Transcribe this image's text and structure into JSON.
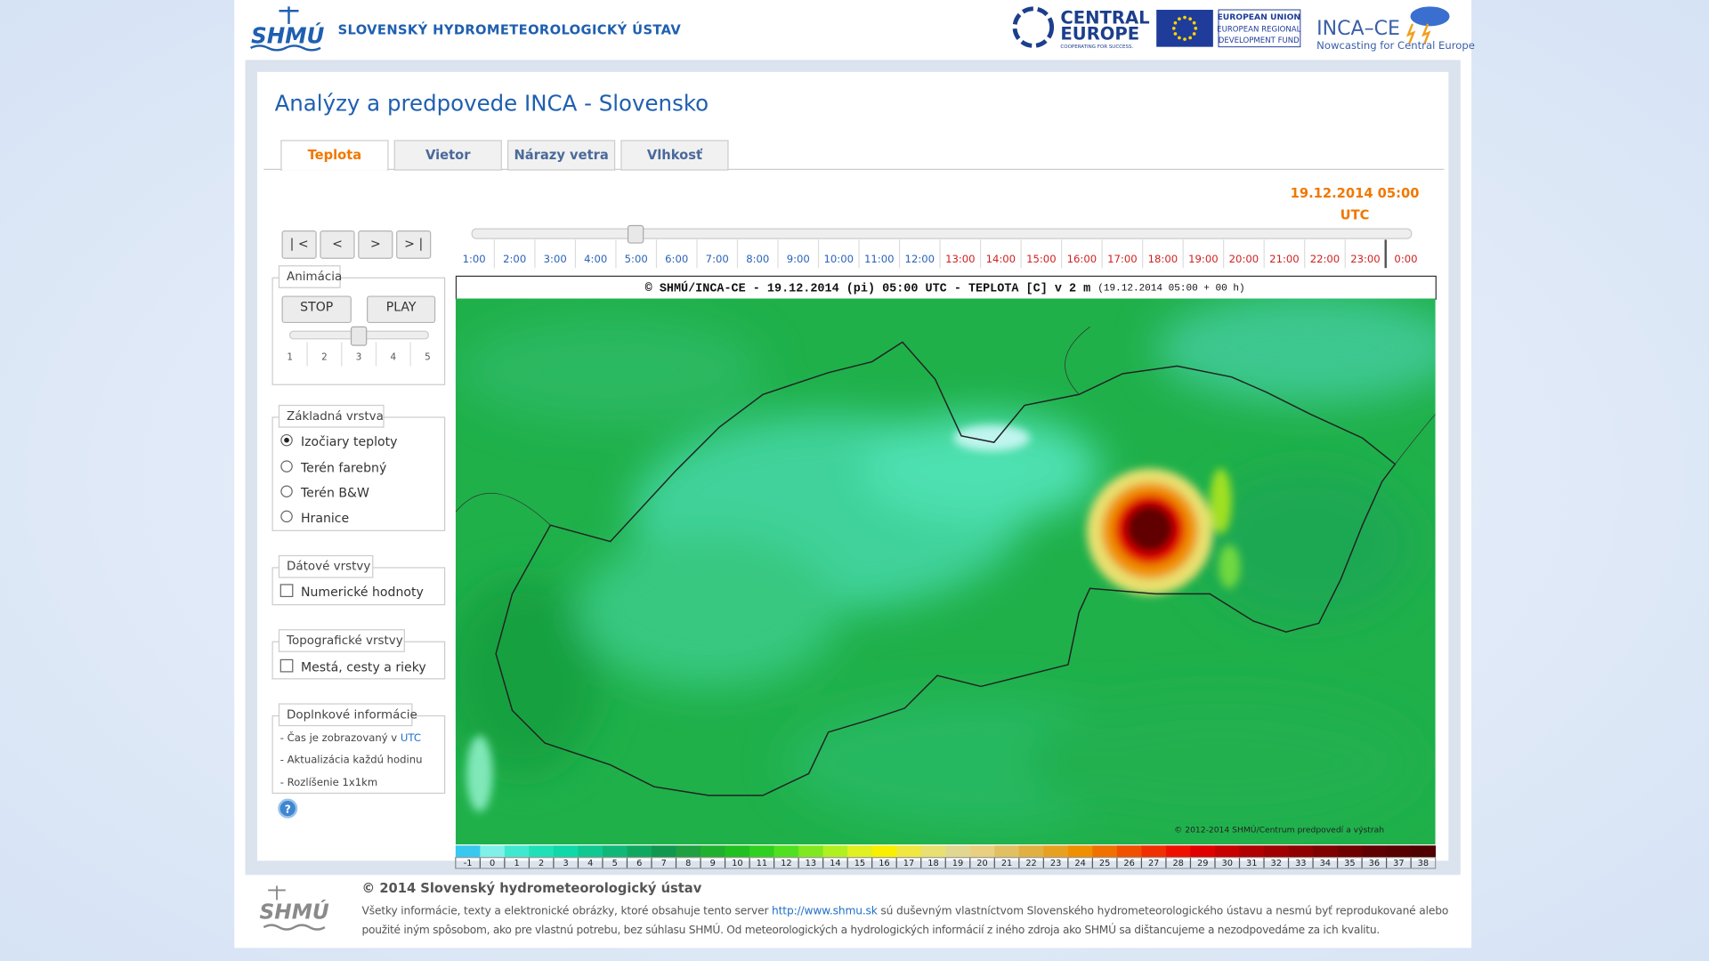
{
  "header": {
    "logo": "SHMÚ",
    "org_name": "SLOVENSKÝ HYDROMETEOROLOGICKÝ ÚSTAV",
    "central_europe": [
      "CENTRAL",
      "EUROPE",
      "COOPERATING FOR SUCCESS."
    ],
    "eu": [
      "EUROPEAN UNION",
      "EUROPEAN REGIONAL",
      "DEVELOPMENT FUND"
    ],
    "inca": {
      "name": "INCA–CE",
      "tagline": "Nowcasting for Central Europe"
    }
  },
  "page": {
    "title": "Analýzy a predpovede INCA - Slovensko",
    "tabs": [
      {
        "label": "Teplota",
        "active": true
      },
      {
        "label": "Vietor",
        "active": false
      },
      {
        "label": "Nárazy vetra",
        "active": false
      },
      {
        "label": "Vlhkosť",
        "active": false
      }
    ]
  },
  "time": {
    "date": "19.12.2014 05:00",
    "zone": "UTC",
    "nav": [
      "| <",
      "<",
      ">",
      "> |"
    ],
    "hours": [
      {
        "label": "1:00",
        "color": "#2a62b8"
      },
      {
        "label": "2:00",
        "color": "#2a62b8"
      },
      {
        "label": "3:00",
        "color": "#2a62b8"
      },
      {
        "label": "4:00",
        "color": "#2a62b8"
      },
      {
        "label": "5:00",
        "color": "#2a62b8",
        "selected": true
      },
      {
        "label": "6:00",
        "color": "#2a62b8"
      },
      {
        "label": "7:00",
        "color": "#2a62b8"
      },
      {
        "label": "8:00",
        "color": "#2a62b8"
      },
      {
        "label": "9:00",
        "color": "#2a62b8"
      },
      {
        "label": "10:00",
        "color": "#2a62b8"
      },
      {
        "label": "11:00",
        "color": "#2a62b8"
      },
      {
        "label": "12:00",
        "color": "#2a62b8"
      },
      {
        "label": "13:00",
        "color": "#d02020"
      },
      {
        "label": "14:00",
        "color": "#d02020"
      },
      {
        "label": "15:00",
        "color": "#d02020"
      },
      {
        "label": "16:00",
        "color": "#d02020"
      },
      {
        "label": "17:00",
        "color": "#d02020"
      },
      {
        "label": "18:00",
        "color": "#d02020"
      },
      {
        "label": "19:00",
        "color": "#d02020"
      },
      {
        "label": "20:00",
        "color": "#d02020"
      },
      {
        "label": "21:00",
        "color": "#d02020"
      },
      {
        "label": "22:00",
        "color": "#d02020"
      },
      {
        "label": "23:00",
        "color": "#d02020"
      },
      {
        "label": "0:00",
        "color": "#d02020"
      }
    ]
  },
  "animation": {
    "legend": "Animácia",
    "stop": "STOP",
    "play": "PLAY",
    "speeds": [
      1,
      2,
      3,
      4,
      5
    ],
    "speed": 3
  },
  "base_layer": {
    "legend": "Základná vrstva",
    "options": [
      {
        "label": "Izočiary teploty",
        "checked": true
      },
      {
        "label": "Terén farebný",
        "checked": false
      },
      {
        "label": "Terén B&W",
        "checked": false
      },
      {
        "label": "Hranice",
        "checked": false
      }
    ]
  },
  "data_layers": {
    "legend": "Dátové vrstvy",
    "options": [
      {
        "label": "Numerické hodnoty",
        "checked": false
      }
    ]
  },
  "topo_layers": {
    "legend": "Topografické vrstvy",
    "options": [
      {
        "label": "Mestá, cesty a rieky",
        "checked": false
      }
    ]
  },
  "info": {
    "legend": "Doplnkové informácie",
    "items": [
      {
        "text": "- Čas je zobrazovaný v",
        "link": "UTC"
      },
      {
        "text": "- Aktualizácia každú hodinu"
      },
      {
        "text": "- Rozlíšenie 1x1km"
      }
    ]
  },
  "map": {
    "title": "© SHMÚ/INCA-CE - 19.12.2014 (pi) 05:00 UTC - TEPLOTA [C] v 2 m",
    "title_note": "(19.12.2014 05:00 + 00 h)",
    "copyright": "© 2012-2014 SHMÚ/Centrum predpovedí a výstrah",
    "scale": {
      "labels": [
        -1,
        0,
        1,
        2,
        3,
        4,
        5,
        6,
        7,
        8,
        9,
        10,
        11,
        12,
        13,
        14,
        15,
        16,
        17,
        18,
        19,
        20,
        21,
        22,
        23,
        24,
        25,
        26,
        27,
        28,
        29,
        30,
        31,
        32,
        33,
        34,
        35,
        36,
        37,
        38
      ],
      "colors": [
        "#38c8f0",
        "#80f0e8",
        "#40e8d0",
        "#20e0b8",
        "#10d8a8",
        "#10c890",
        "#10b878",
        "#10a860",
        "#109850",
        "#20a040",
        "#20b030",
        "#20c020",
        "#30d020",
        "#50e020",
        "#80e820",
        "#b0f020",
        "#e0f020",
        "#f8f000",
        "#f0e840",
        "#e8e070",
        "#e0d890",
        "#e8d080",
        "#e0c060",
        "#e0b040",
        "#e8a020",
        "#f09000",
        "#f07000",
        "#f05000",
        "#f03000",
        "#f01000",
        "#e00000",
        "#c80000",
        "#b00000",
        "#a00000",
        "#900000",
        "#800000",
        "#700000",
        "#600000",
        "#580000",
        "#500000"
      ]
    }
  },
  "footer": {
    "logo": "SHMÚ",
    "title": "© 2014 Slovenský hydrometeorologický ústav",
    "line_1_start": "Všetky informácie, texty a elektronické obrázky, ktoré obsahuje tento server",
    "link": "http://www.shmu.sk",
    "line_1_end": "sú duševným vlastníctvom Slovenského hydrometeorologického ústavu a nesmú byť reprodukované alebo",
    "line_2": "použité iným spôsobom, ako pre vlastnú potrebu, bez súhlasu SHMÚ. Od meteorologických a hydrologických informácií z iného zdroja ako SHMÚ sa dištancujeme a nezodpovedáme za ich kvalitu."
  }
}
